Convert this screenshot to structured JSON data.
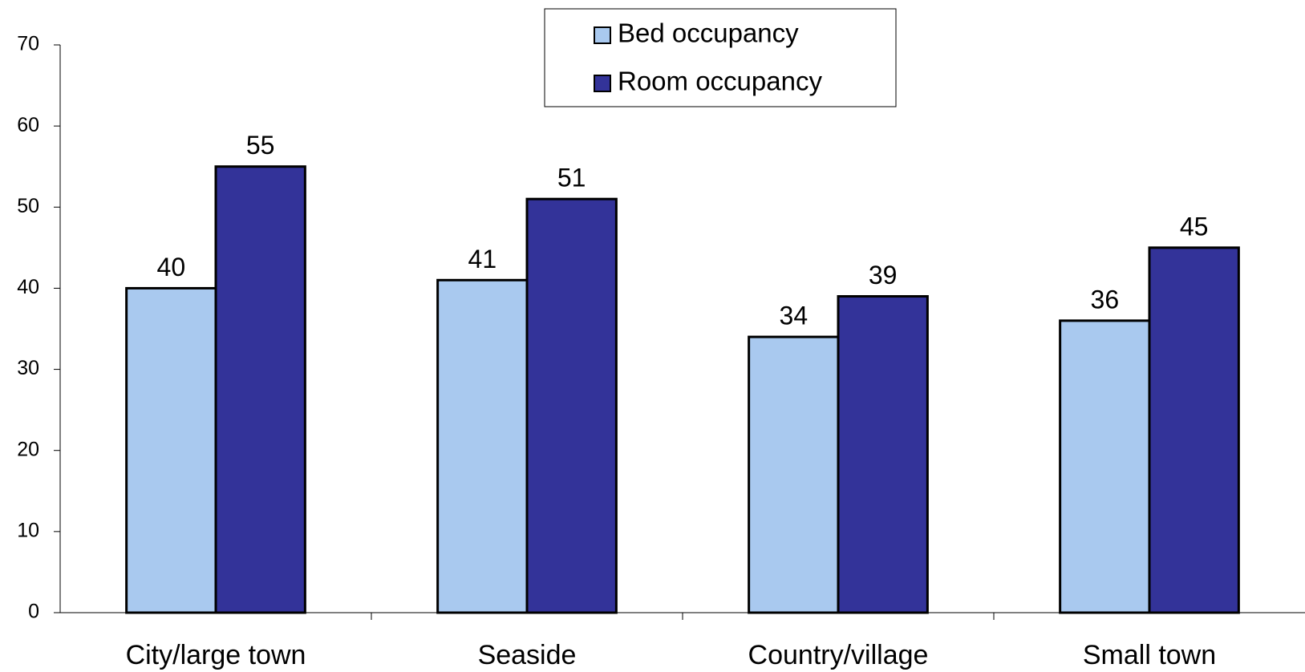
{
  "chart_data": {
    "type": "bar",
    "categories": [
      "City/large town",
      "Seaside",
      "Country/village",
      "Small town"
    ],
    "series": [
      {
        "name": "Bed occupancy",
        "color": "#a9c9ef",
        "values": [
          40,
          41,
          34,
          36
        ]
      },
      {
        "name": "Room occupancy",
        "color": "#333399",
        "values": [
          55,
          51,
          39,
          45
        ]
      }
    ],
    "ylim": [
      0,
      70
    ],
    "yticks": [
      0,
      10,
      20,
      30,
      40,
      50,
      60,
      70
    ],
    "grid": false,
    "legend": "top"
  }
}
